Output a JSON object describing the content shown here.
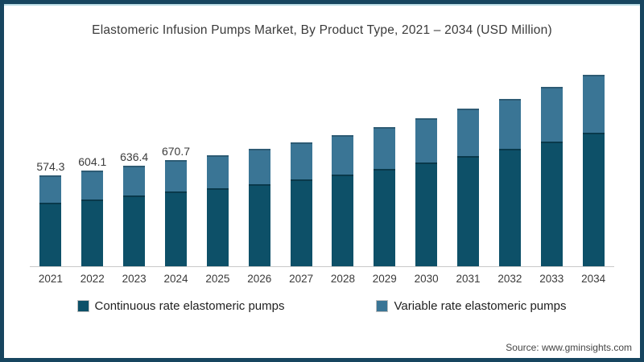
{
  "title": "Elastomeric Infusion Pumps Market, By Product Type, 2021 – 2034 (USD Million)",
  "source": "Source: www.gminsights.com",
  "colors": {
    "frame_border": "#17455f",
    "top_accent": "#bcdde6",
    "continuous_series": "#0d5068",
    "variable_series": "#3a7595",
    "axis_line": "#c9c9c9",
    "text": "#3a3a3a"
  },
  "legend": [
    {
      "label": "Continuous rate elastomeric pumps",
      "color": "#0d5068"
    },
    {
      "label": "Variable rate elastomeric pumps",
      "color": "#3a7595"
    }
  ],
  "chart_data": {
    "type": "bar",
    "stacked": true,
    "title": "Elastomeric Infusion Pumps Market, By Product Type, 2021 – 2034 (USD Million)",
    "xlabel": "",
    "ylabel": "USD Million",
    "ylim": [
      0,
      1270
    ],
    "grid": false,
    "legend_position": "bottom",
    "categories": [
      "2021",
      "2022",
      "2023",
      "2024",
      "2025",
      "2026",
      "2027",
      "2028",
      "2029",
      "2030",
      "2031",
      "2032",
      "2033",
      "2034"
    ],
    "series": [
      {
        "name": "Continuous rate elastomeric pumps",
        "color": "#0d5068",
        "values": [
          402,
          423,
          445,
          470,
          491,
          518,
          547,
          579,
          614,
          655,
          694,
          740,
          790,
          843
        ]
      },
      {
        "name": "Variable rate elastomeric pumps",
        "color": "#3a7595",
        "values": [
          172.3,
          181.1,
          191.4,
          200.7,
          211,
          222,
          235,
          248,
          263,
          281,
          300,
          318,
          341,
          365
        ]
      }
    ],
    "totals": [
      574.3,
      604.1,
      636.4,
      670.7,
      702,
      740,
      782,
      827,
      877,
      936,
      994,
      1058,
      1131,
      1208
    ],
    "bar_labels": [
      "574.3",
      "604.1",
      "636.4",
      "670.7",
      "",
      "",
      "",
      "",
      "",
      "",
      "",
      "",
      "",
      ""
    ]
  }
}
